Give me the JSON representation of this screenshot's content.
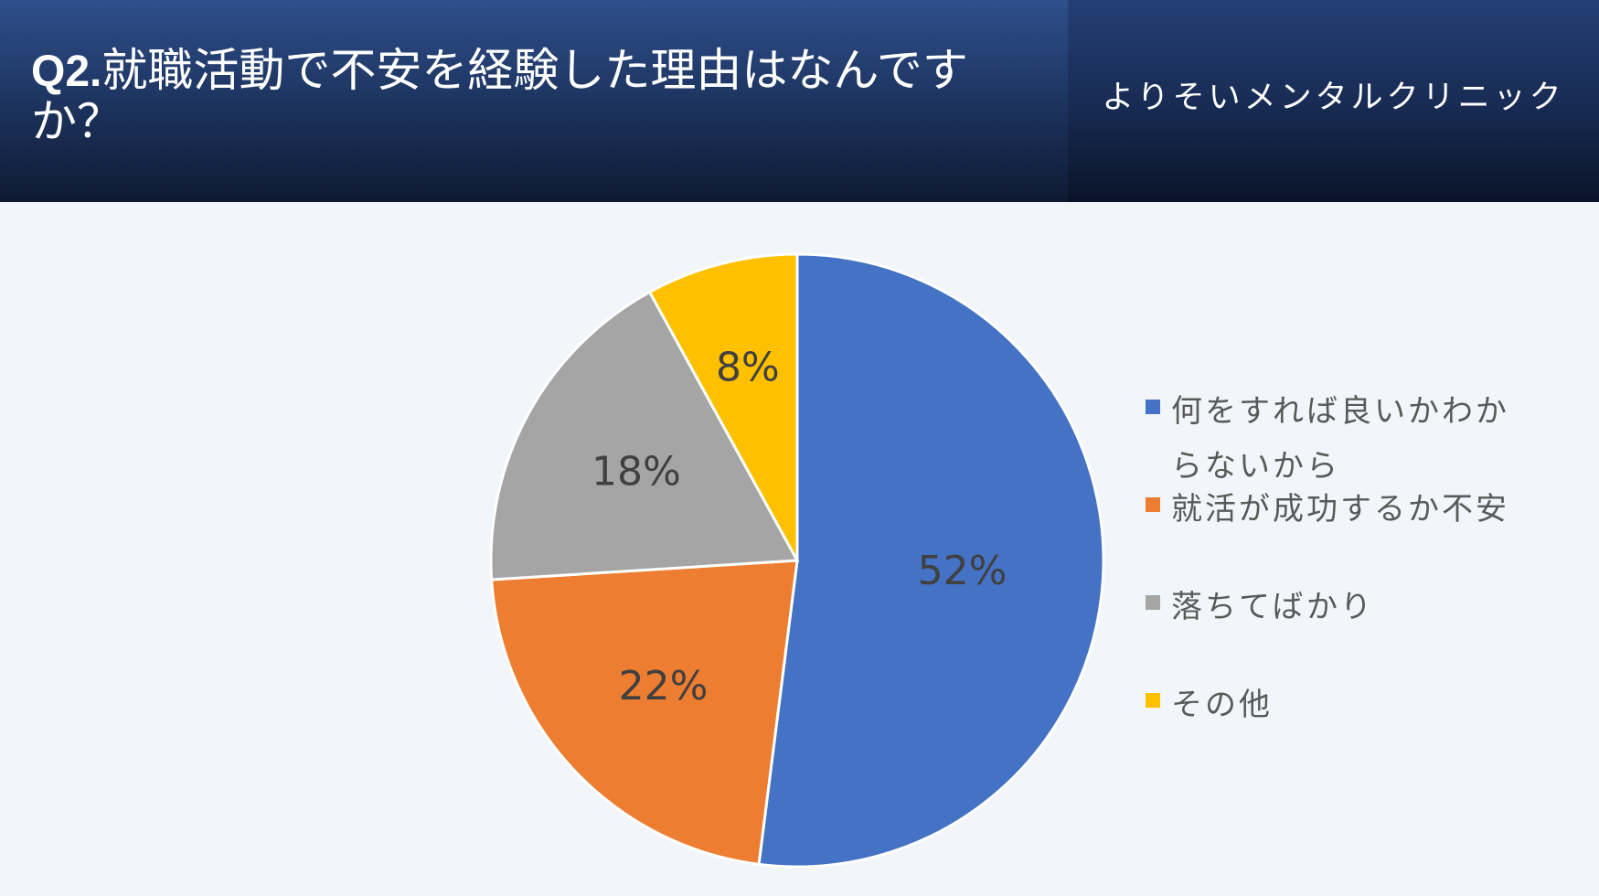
{
  "header": {
    "question_number": "Q2.",
    "title": "就職活動で不安を経験した理由はなんですか？",
    "clinic_name": "よりそいメンタルクリニック"
  },
  "colors": {
    "header_dark": "#0e1a33",
    "header_blue": "#2e4f8c",
    "background": "#f2f5fa"
  },
  "chart_data": {
    "type": "pie",
    "categories": [
      "何をすれば良いかわからないから",
      "就活が成功するか不安",
      "落ちてばかり",
      "その他"
    ],
    "values": [
      52,
      22,
      18,
      8
    ],
    "data_labels": [
      "52%",
      "22%",
      "18%",
      "8%"
    ],
    "colors": [
      "#4472c4",
      "#ed7d31",
      "#a5a5a5",
      "#ffc000"
    ],
    "legend_position": "right",
    "start_angle": "12 o'clock",
    "direction": "clockwise"
  }
}
